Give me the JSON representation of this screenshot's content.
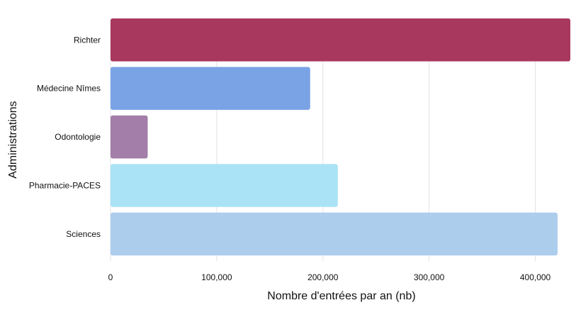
{
  "chart_data": {
    "type": "bar",
    "orientation": "horizontal",
    "title": "",
    "xlabel": "Nombre d'entrées par an (nb)",
    "ylabel": "Administrations",
    "xlim": [
      0,
      435000
    ],
    "x_ticks": [
      {
        "value": 0,
        "label": "0"
      },
      {
        "value": 100000,
        "label": "100,000"
      },
      {
        "value": 200000,
        "label": "200,000"
      },
      {
        "value": 300000,
        "label": "300,000"
      },
      {
        "value": 400000,
        "label": "400,000"
      }
    ],
    "grid": "vertical",
    "legend": "none",
    "categories": [
      "Richter",
      "Médecine Nîmes",
      "Odontologie",
      "Pharmacie-PACES",
      "Sciences"
    ],
    "values": [
      433000,
      188000,
      35000,
      214000,
      421000
    ],
    "colors": [
      "#a8385d",
      "#7aa3e5",
      "#a27ea8",
      "#aae3f5",
      "#adcded"
    ]
  }
}
